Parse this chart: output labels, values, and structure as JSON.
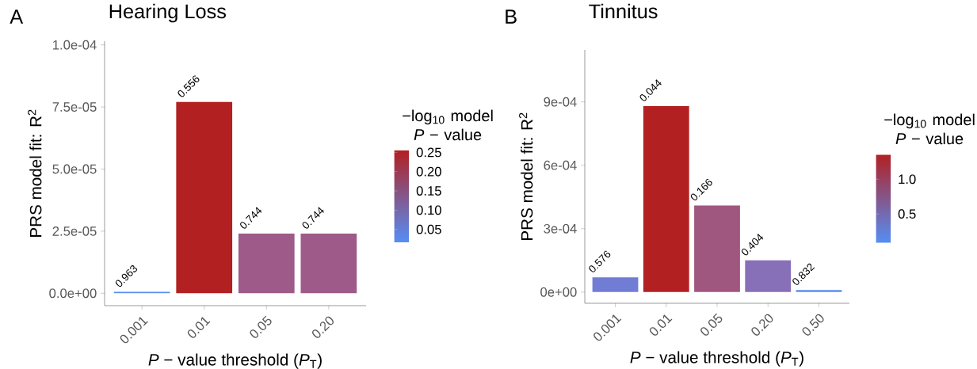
{
  "chart_data": [
    {
      "type": "bar",
      "title": "Hearing Loss",
      "xlabel": "*P* − value threshold (*P*$_{T}$)",
      "ylabel": "PRS model fit:  R$^{2}$",
      "clabel": "−log$_{10}$ model *P* − value",
      "annotations": [
        "A",
        {
          "text": "0.963",
          "x": "0.001",
          "y": 6e-07
        },
        {
          "text": "0.556",
          "x": "0.01",
          "y": 7.7e-05
        },
        {
          "text": "0.744",
          "x": "0.05",
          "y": 2.4e-05
        },
        {
          "text": "0.744",
          "x": "0.20",
          "y": 2.4e-05
        }
      ],
      "categories": [
        "0.001",
        "0.01",
        "0.05",
        "0.20"
      ],
      "values": [
        6e-07,
        7.7e-05,
        2.4e-05,
        2.4e-05
      ],
      "colors": [
        "#5b8ff0",
        "#b22022",
        "#9e5a88",
        "#9e5a88"
      ],
      "ylim": [
        -5e-06,
        0.0001015
      ],
      "yticks": [
        {
          "value": 0,
          "label": "0.0e+00"
        },
        {
          "value": 2.5e-05,
          "label": "2.5e-05"
        },
        {
          "value": 5e-05,
          "label": "5.0e-05"
        },
        {
          "value": 7.5e-05,
          "label": "7.5e-05"
        },
        {
          "value": 0.0001,
          "label": "1.0e-04"
        }
      ],
      "clim": [
        0.0164,
        0.255
      ],
      "cticks": [
        0.05,
        {
          "value": 0.1,
          "label": "0.10"
        },
        0.15,
        {
          "value": 0.2,
          "label": "0.20"
        },
        0.25
      ]
    },
    {
      "type": "bar",
      "title": "Tinnitus",
      "xlabel": "*P* − value threshold (*P*$_{T}$)",
      "ylabel": "PRS model fit:  R$^{2}$",
      "clabel": "−log$_{10}$ model *P* − value",
      "annotations": [
        "B",
        {
          "text": "0.576",
          "x": "0.001",
          "y": 7e-05
        },
        {
          "text": "0.044",
          "x": "0.01",
          "y": 0.00088
        },
        {
          "text": "0.166",
          "x": "0.05",
          "y": 0.00041
        },
        {
          "text": "0.404",
          "x": "0.20",
          "y": 0.00015
        },
        {
          "text": "0.832",
          "x": "0.50",
          "y": 1e-05
        }
      ],
      "categories": [
        "0.001",
        "0.01",
        "0.05",
        "0.20",
        "0.50"
      ],
      "values": [
        7e-05,
        0.00088,
        0.00041,
        0.00015,
        1e-05
      ],
      "colors": [
        "#717cd5",
        "#b22022",
        "#a0577f",
        "#8770b8",
        "#5b8ff0"
      ],
      "ylim": [
        -5.3e-05,
        0.001146
      ],
      "yticks": [
        {
          "value": 0,
          "label": "0e+00"
        },
        {
          "value": 0.0003,
          "label": "3e-04"
        },
        {
          "value": 0.0006,
          "label": "6e-04"
        },
        {
          "value": 0.0009,
          "label": "9e-04"
        }
      ],
      "clim": [
        0.08,
        1.357
      ],
      "cticks": [
        0.5,
        {
          "value": 1,
          "label": "1.0"
        }
      ]
    }
  ]
}
